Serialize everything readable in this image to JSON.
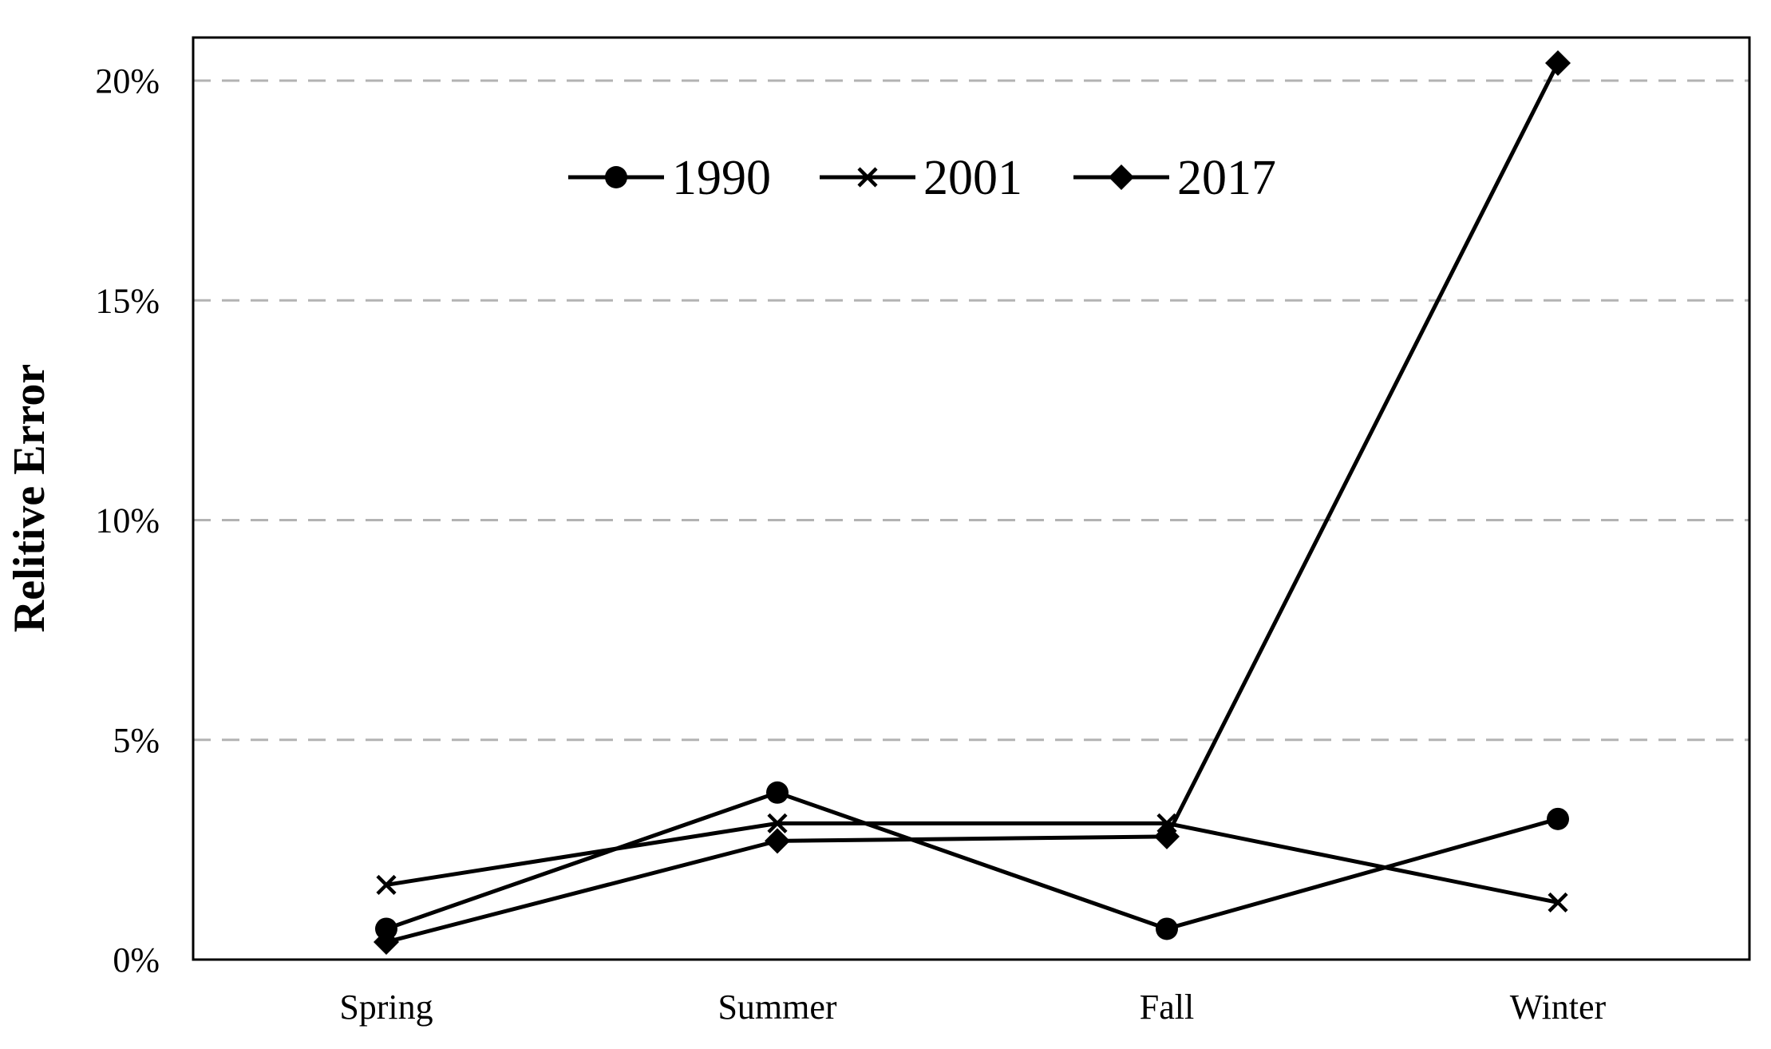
{
  "chart_data": {
    "type": "line",
    "title": "",
    "xlabel": "",
    "ylabel": "Relitive Error",
    "categories": [
      "Spring",
      "Summer",
      "Fall",
      "Winter"
    ],
    "ylim": [
      0,
      21
    ],
    "y_ticks": [
      0,
      5,
      10,
      15,
      20
    ],
    "y_tick_labels": [
      "0%",
      "5%",
      "10%",
      "15%",
      "20%"
    ],
    "y_unit": "%",
    "grid": "horizontal dashed, light gray",
    "legend_position": "top-center",
    "series": [
      {
        "name": "1990",
        "marker": "circle",
        "color": "#000000",
        "values": [
          0.7,
          3.8,
          0.7,
          3.2
        ]
      },
      {
        "name": "2001",
        "marker": "x",
        "color": "#000000",
        "values": [
          1.7,
          3.1,
          3.1,
          1.3
        ]
      },
      {
        "name": "2017",
        "marker": "diamond",
        "color": "#000000",
        "values": [
          0.4,
          2.7,
          2.8,
          20.4
        ]
      }
    ]
  }
}
